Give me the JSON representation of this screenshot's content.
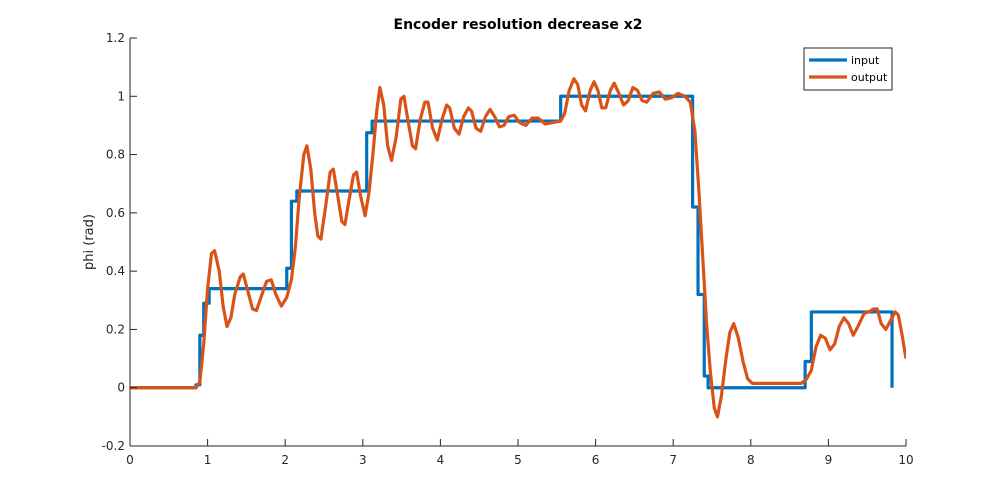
{
  "chart_data": {
    "type": "line",
    "title": "Encoder resolution decrease x2",
    "xlabel": "",
    "ylabel": "phi (rad)",
    "xlim": [
      0,
      10
    ],
    "ylim": [
      -0.2,
      1.2
    ],
    "xticks": [
      0,
      1,
      2,
      3,
      4,
      5,
      6,
      7,
      8,
      9,
      10
    ],
    "yticks": [
      -0.2,
      0,
      0.2,
      0.4,
      0.6,
      0.8,
      1,
      1.2
    ],
    "grid": false,
    "legend_position": "top-right",
    "series": [
      {
        "name": "input",
        "color": "#0072BD",
        "step": true,
        "points": [
          [
            0,
            0
          ],
          [
            0.85,
            0.01
          ],
          [
            0.9,
            0.18
          ],
          [
            0.95,
            0.29
          ],
          [
            1.02,
            0.34
          ],
          [
            2.02,
            0.41
          ],
          [
            2.08,
            0.64
          ],
          [
            2.15,
            0.675
          ],
          [
            3.05,
            0.875
          ],
          [
            3.12,
            0.915
          ],
          [
            5.55,
            1.0
          ],
          [
            7.25,
            0.62
          ],
          [
            7.32,
            0.32
          ],
          [
            7.4,
            0.04
          ],
          [
            7.45,
            0.0
          ],
          [
            8.7,
            0.09
          ],
          [
            8.78,
            0.26
          ],
          [
            9.82,
            0.0
          ]
        ]
      },
      {
        "name": "output",
        "color": "#D95319",
        "step": false,
        "points": [
          [
            0,
            0
          ],
          [
            0.85,
            0.0
          ],
          [
            0.9,
            0.02
          ],
          [
            0.95,
            0.15
          ],
          [
            1.0,
            0.34
          ],
          [
            1.05,
            0.46
          ],
          [
            1.09,
            0.47
          ],
          [
            1.15,
            0.4
          ],
          [
            1.2,
            0.28
          ],
          [
            1.25,
            0.21
          ],
          [
            1.3,
            0.24
          ],
          [
            1.35,
            0.32
          ],
          [
            1.42,
            0.38
          ],
          [
            1.46,
            0.39
          ],
          [
            1.52,
            0.33
          ],
          [
            1.58,
            0.27
          ],
          [
            1.63,
            0.265
          ],
          [
            1.7,
            0.32
          ],
          [
            1.76,
            0.365
          ],
          [
            1.82,
            0.37
          ],
          [
            1.88,
            0.32
          ],
          [
            1.95,
            0.28
          ],
          [
            2.02,
            0.31
          ],
          [
            2.08,
            0.37
          ],
          [
            2.13,
            0.48
          ],
          [
            2.18,
            0.65
          ],
          [
            2.24,
            0.8
          ],
          [
            2.28,
            0.83
          ],
          [
            2.33,
            0.75
          ],
          [
            2.38,
            0.6
          ],
          [
            2.42,
            0.52
          ],
          [
            2.46,
            0.51
          ],
          [
            2.52,
            0.62
          ],
          [
            2.58,
            0.74
          ],
          [
            2.62,
            0.75
          ],
          [
            2.67,
            0.67
          ],
          [
            2.73,
            0.57
          ],
          [
            2.77,
            0.56
          ],
          [
            2.82,
            0.64
          ],
          [
            2.88,
            0.73
          ],
          [
            2.92,
            0.74
          ],
          [
            2.97,
            0.66
          ],
          [
            3.03,
            0.59
          ],
          [
            3.08,
            0.67
          ],
          [
            3.13,
            0.8
          ],
          [
            3.18,
            0.95
          ],
          [
            3.22,
            1.03
          ],
          [
            3.27,
            0.97
          ],
          [
            3.32,
            0.83
          ],
          [
            3.37,
            0.78
          ],
          [
            3.43,
            0.86
          ],
          [
            3.49,
            0.99
          ],
          [
            3.53,
            1.0
          ],
          [
            3.58,
            0.92
          ],
          [
            3.64,
            0.83
          ],
          [
            3.68,
            0.82
          ],
          [
            3.74,
            0.92
          ],
          [
            3.8,
            0.98
          ],
          [
            3.84,
            0.98
          ],
          [
            3.9,
            0.89
          ],
          [
            3.96,
            0.85
          ],
          [
            4.02,
            0.92
          ],
          [
            4.08,
            0.97
          ],
          [
            4.12,
            0.96
          ],
          [
            4.18,
            0.89
          ],
          [
            4.24,
            0.87
          ],
          [
            4.3,
            0.93
          ],
          [
            4.36,
            0.96
          ],
          [
            4.4,
            0.95
          ],
          [
            4.46,
            0.89
          ],
          [
            4.52,
            0.88
          ],
          [
            4.58,
            0.93
          ],
          [
            4.64,
            0.955
          ],
          [
            4.7,
            0.93
          ],
          [
            4.76,
            0.895
          ],
          [
            4.82,
            0.9
          ],
          [
            4.88,
            0.93
          ],
          [
            4.95,
            0.935
          ],
          [
            5.02,
            0.91
          ],
          [
            5.1,
            0.9
          ],
          [
            5.18,
            0.925
          ],
          [
            5.26,
            0.925
          ],
          [
            5.35,
            0.905
          ],
          [
            5.45,
            0.91
          ],
          [
            5.55,
            0.915
          ],
          [
            5.6,
            0.94
          ],
          [
            5.66,
            1.02
          ],
          [
            5.72,
            1.06
          ],
          [
            5.77,
            1.04
          ],
          [
            5.82,
            0.97
          ],
          [
            5.87,
            0.95
          ],
          [
            5.93,
            1.02
          ],
          [
            5.98,
            1.05
          ],
          [
            6.03,
            1.02
          ],
          [
            6.08,
            0.96
          ],
          [
            6.13,
            0.96
          ],
          [
            6.19,
            1.02
          ],
          [
            6.24,
            1.045
          ],
          [
            6.3,
            1.01
          ],
          [
            6.36,
            0.97
          ],
          [
            6.42,
            0.985
          ],
          [
            6.48,
            1.03
          ],
          [
            6.54,
            1.02
          ],
          [
            6.6,
            0.985
          ],
          [
            6.66,
            0.98
          ],
          [
            6.74,
            1.01
          ],
          [
            6.82,
            1.015
          ],
          [
            6.9,
            0.99
          ],
          [
            6.98,
            0.995
          ],
          [
            7.06,
            1.01
          ],
          [
            7.15,
            1.0
          ],
          [
            7.22,
            0.98
          ],
          [
            7.28,
            0.88
          ],
          [
            7.33,
            0.68
          ],
          [
            7.38,
            0.45
          ],
          [
            7.43,
            0.22
          ],
          [
            7.48,
            0.05
          ],
          [
            7.53,
            -0.07
          ],
          [
            7.57,
            -0.1
          ],
          [
            7.62,
            -0.03
          ],
          [
            7.68,
            0.1
          ],
          [
            7.73,
            0.19
          ],
          [
            7.78,
            0.22
          ],
          [
            7.84,
            0.17
          ],
          [
            7.9,
            0.09
          ],
          [
            7.96,
            0.03
          ],
          [
            8.02,
            0.015
          ],
          [
            8.15,
            0.015
          ],
          [
            8.4,
            0.015
          ],
          [
            8.65,
            0.015
          ],
          [
            8.72,
            0.03
          ],
          [
            8.78,
            0.06
          ],
          [
            8.84,
            0.14
          ],
          [
            8.9,
            0.18
          ],
          [
            8.96,
            0.17
          ],
          [
            9.02,
            0.13
          ],
          [
            9.08,
            0.15
          ],
          [
            9.14,
            0.21
          ],
          [
            9.2,
            0.24
          ],
          [
            9.26,
            0.22
          ],
          [
            9.32,
            0.18
          ],
          [
            9.38,
            0.21
          ],
          [
            9.46,
            0.255
          ],
          [
            9.52,
            0.26
          ],
          [
            9.58,
            0.27
          ],
          [
            9.63,
            0.27
          ],
          [
            9.68,
            0.22
          ],
          [
            9.74,
            0.2
          ],
          [
            9.8,
            0.23
          ],
          [
            9.86,
            0.26
          ],
          [
            9.9,
            0.25
          ],
          [
            9.95,
            0.18
          ],
          [
            10.0,
            0.1
          ]
        ]
      }
    ]
  }
}
